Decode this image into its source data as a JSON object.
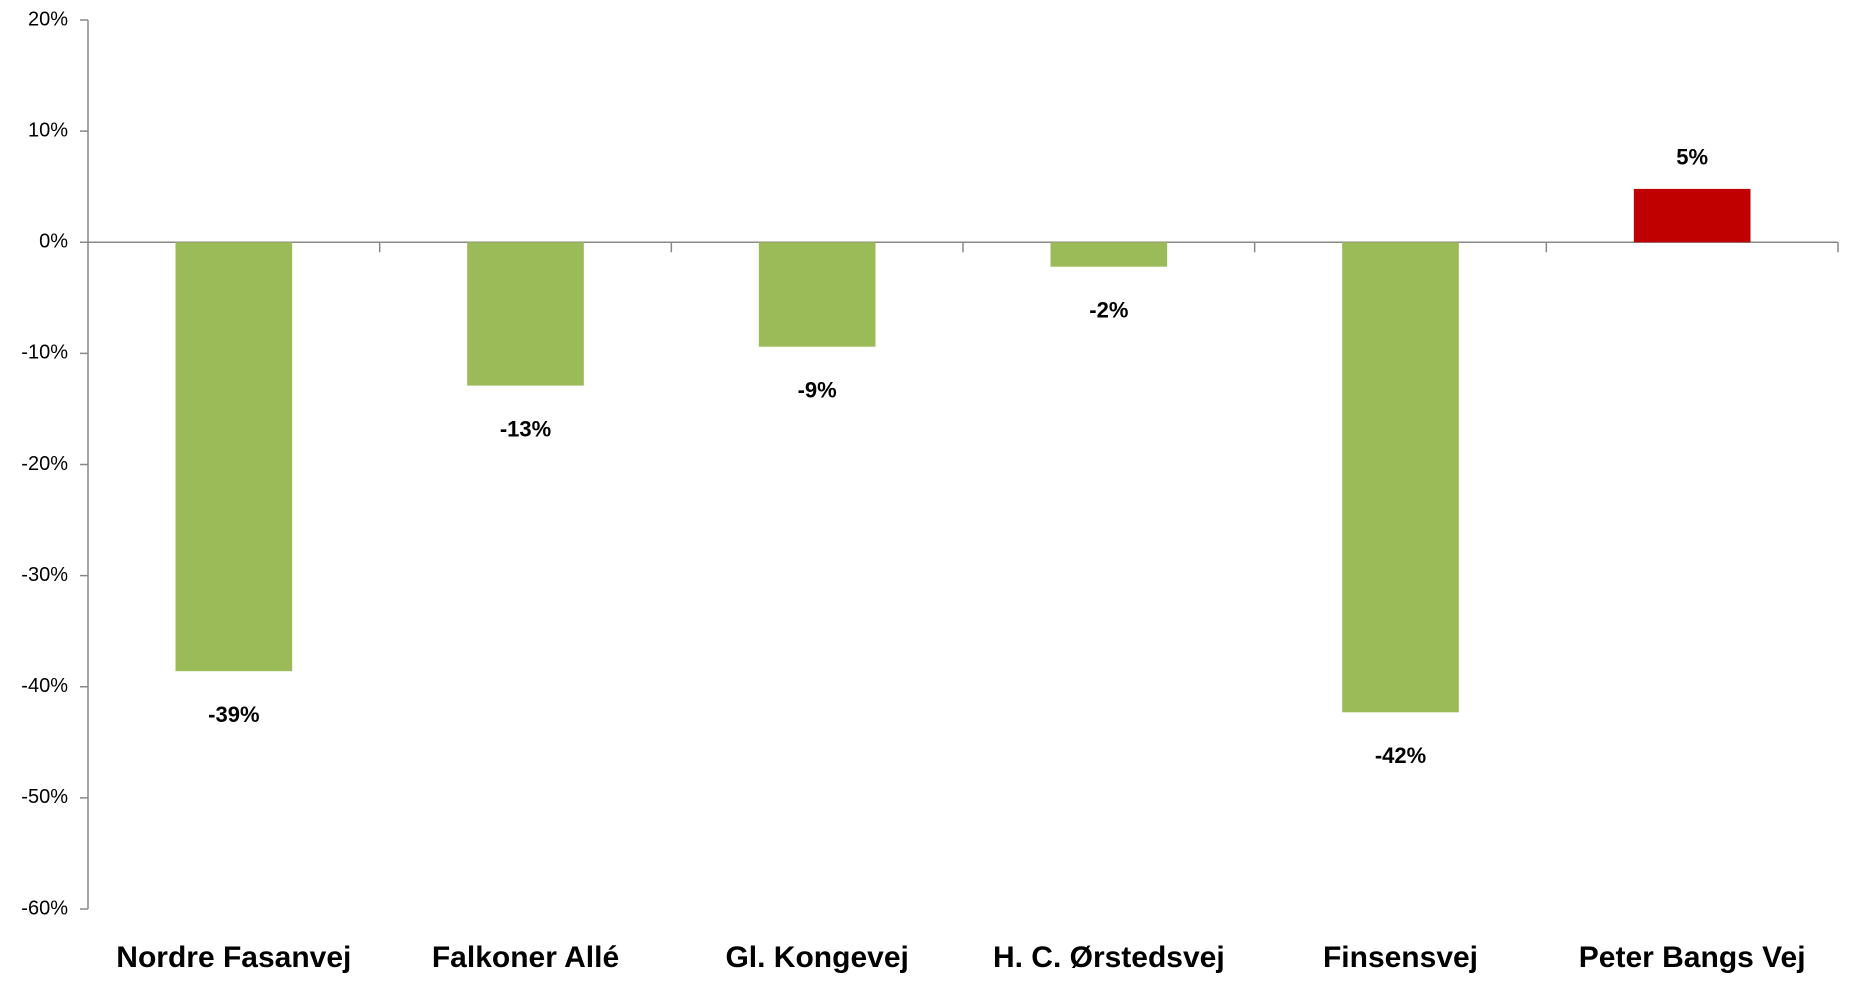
{
  "chart_data": {
    "type": "bar",
    "categories": [
      "Nordre Fasanvej",
      "Falkoner Allé",
      "Gl. Kongevej",
      "H. C. Ørstedsvej",
      "Finsensvej",
      "Peter Bangs Vej"
    ],
    "values": [
      -38.6,
      -12.9,
      -9.4,
      -2.2,
      -42.3,
      4.8
    ],
    "value_labels": [
      "-39%",
      "-13%",
      "-9%",
      "-2%",
      "-42%",
      "5%"
    ],
    "colors": [
      "#9bbb59",
      "#9bbb59",
      "#9bbb59",
      "#9bbb59",
      "#9bbb59",
      "#c00000"
    ],
    "ylim": [
      -60,
      20
    ],
    "yticks": [
      {
        "value": -60,
        "label": "-60%"
      },
      {
        "value": -50,
        "label": "-50%"
      },
      {
        "value": -40,
        "label": "-40%"
      },
      {
        "value": -30,
        "label": "-30%"
      },
      {
        "value": -20,
        "label": "-20%"
      },
      {
        "value": -10,
        "label": "-10%"
      },
      {
        "value": 0,
        "label": "0%"
      },
      {
        "value": 10,
        "label": "10%"
      },
      {
        "value": 20,
        "label": "20%"
      }
    ],
    "grid": false
  }
}
